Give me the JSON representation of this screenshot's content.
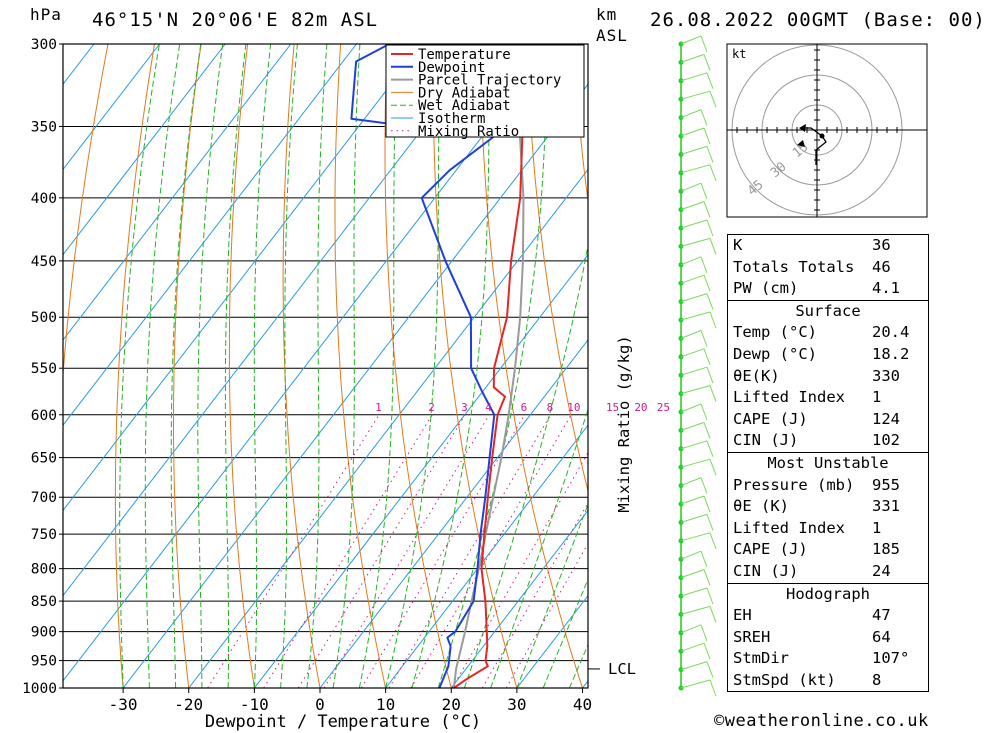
{
  "header": {
    "unit_hpa": "hPa",
    "location": "46°15'N 20°06'E 82m ASL",
    "unit_km_1": "km",
    "unit_km_2": "ASL",
    "datetime": "26.08.2022 00GMT (Base: 00)"
  },
  "chart_data": {
    "type": "skew-t",
    "xlabel": "Dewpoint / Temperature (°C)",
    "ylabel_right": "Mixing Ratio (g/kg)",
    "x_ticks": [
      -30,
      -20,
      -10,
      0,
      10,
      20,
      30,
      40
    ],
    "x_ticks_labels": [
      "-30",
      "-20",
      "-10",
      "0",
      "10",
      "20",
      "30",
      "40"
    ],
    "pressure_ticks": [
      300,
      350,
      400,
      450,
      500,
      550,
      600,
      650,
      700,
      750,
      800,
      850,
      900,
      950,
      1000
    ],
    "pressure_ticks_labels": [
      "300",
      "350",
      "400",
      "450",
      "500",
      "550",
      "600",
      "650",
      "700",
      "750",
      "800",
      "850",
      "900",
      "950",
      "1000"
    ],
    "mixing_ratio_labels": [
      "1",
      "2",
      "3",
      "4",
      "6",
      "8",
      "10",
      "15",
      "20",
      "25"
    ],
    "mixing_ratio_values": [
      1,
      2,
      3,
      4,
      6,
      8,
      10,
      15,
      20,
      25
    ],
    "lcl_label": "LCL",
    "lcl_pressure": 965,
    "legend": [
      {
        "name": "Temperature",
        "color": "#e32626"
      },
      {
        "name": "Dewpoint",
        "color": "#1f3fd9"
      },
      {
        "name": "Parcel Trajectory",
        "color": "#9a9a9a"
      },
      {
        "name": "Dry Adiabat",
        "color": "#e07a1e"
      },
      {
        "name": "Wet Adiabat",
        "color": "#25b325"
      },
      {
        "name": "Isotherm",
        "color": "#2b9ae0"
      },
      {
        "name": "Mixing Ratio",
        "color": "#d21a8f"
      }
    ],
    "temperature": [
      {
        "p": 1000,
        "t": 20.4
      },
      {
        "p": 985,
        "t": 21.2
      },
      {
        "p": 960,
        "t": 23.0
      },
      {
        "p": 950,
        "t": 22.0
      },
      {
        "p": 925,
        "t": 20.6
      },
      {
        "p": 900,
        "t": 18.8
      },
      {
        "p": 850,
        "t": 15.0
      },
      {
        "p": 800,
        "t": 10.6
      },
      {
        "p": 750,
        "t": 7.0
      },
      {
        "p": 700,
        "t": 3.2
      },
      {
        "p": 650,
        "t": -0.8
      },
      {
        "p": 600,
        "t": -5.0
      },
      {
        "p": 580,
        "t": -6.0
      },
      {
        "p": 570,
        "t": -8.8
      },
      {
        "p": 550,
        "t": -11.0
      },
      {
        "p": 500,
        "t": -15.0
      },
      {
        "p": 450,
        "t": -21.0
      },
      {
        "p": 400,
        "t": -27.0
      },
      {
        "p": 350,
        "t": -35.0
      },
      {
        "p": 300,
        "t": -45.0
      }
    ],
    "dewpoint": [
      {
        "p": 1000,
        "t": 18.2
      },
      {
        "p": 960,
        "t": 17.0
      },
      {
        "p": 925,
        "t": 15.0
      },
      {
        "p": 910,
        "t": 13.5
      },
      {
        "p": 900,
        "t": 14.0
      },
      {
        "p": 850,
        "t": 13.2
      },
      {
        "p": 800,
        "t": 10.0
      },
      {
        "p": 750,
        "t": 6.4
      },
      {
        "p": 700,
        "t": 2.8
      },
      {
        "p": 650,
        "t": -1.2
      },
      {
        "p": 600,
        "t": -5.5
      },
      {
        "p": 575,
        "t": -10.0
      },
      {
        "p": 550,
        "t": -14.5
      },
      {
        "p": 500,
        "t": -20.5
      },
      {
        "p": 450,
        "t": -31.0
      },
      {
        "p": 400,
        "t": -42.0
      },
      {
        "p": 380,
        "t": -41.0
      },
      {
        "p": 355,
        "t": -38.0
      },
      {
        "p": 350,
        "t": -52.0
      },
      {
        "p": 345,
        "t": -62.0
      },
      {
        "p": 310,
        "t": -68.0
      },
      {
        "p": 300,
        "t": -65.0
      }
    ],
    "parcel": [
      {
        "p": 1000,
        "t": 20.4
      },
      {
        "p": 965,
        "t": 18.5
      },
      {
        "p": 900,
        "t": 15.5
      },
      {
        "p": 850,
        "t": 12.9
      },
      {
        "p": 800,
        "t": 10.2
      },
      {
        "p": 750,
        "t": 7.2
      },
      {
        "p": 700,
        "t": 4.0
      },
      {
        "p": 650,
        "t": 0.6
      },
      {
        "p": 600,
        "t": -3.3
      },
      {
        "p": 550,
        "t": -7.8
      },
      {
        "p": 500,
        "t": -13.0
      },
      {
        "p": 450,
        "t": -19.2
      },
      {
        "p": 400,
        "t": -26.5
      },
      {
        "p": 350,
        "t": -35.5
      },
      {
        "p": 300,
        "t": -46.5
      }
    ],
    "hodograph_rings": [
      "15",
      "30",
      "45"
    ],
    "hodograph_label": "kt"
  },
  "indices": {
    "k_label": "K",
    "k_value": "36",
    "tt_label": "Totals Totals",
    "tt_value": "46",
    "pw_label": "PW (cm)",
    "pw_value": "4.1"
  },
  "surface": {
    "title": "Surface",
    "temp_label": "Temp (°C)",
    "temp_value": "20.4",
    "dewp_label": "Dewp (°C)",
    "dewp_value": "18.2",
    "theta_label": "θE(K)",
    "theta_value": "330",
    "li_label": "Lifted Index",
    "li_value": "1",
    "cape_label": "CAPE (J)",
    "cape_value": "124",
    "cin_label": "CIN (J)",
    "cin_value": "102"
  },
  "most_unstable": {
    "title": "Most Unstable",
    "pressure_label": "Pressure (mb)",
    "pressure_value": "955",
    "theta_label": "θE (K)",
    "theta_value": "331",
    "li_label": "Lifted Index",
    "li_value": "1",
    "cape_label": "CAPE (J)",
    "cape_value": "185",
    "cin_label": "CIN (J)",
    "cin_value": "24"
  },
  "hodograph": {
    "title": "Hodograph",
    "eh_label": "EH",
    "eh_value": "47",
    "sreh_label": "SREH",
    "sreh_value": "64",
    "stmdir_label": "StmDir",
    "stmdir_value": "107°",
    "stmspd_label": "StmSpd (kt)",
    "stmspd_value": "8"
  },
  "credit": "©weatheronline.co.uk"
}
